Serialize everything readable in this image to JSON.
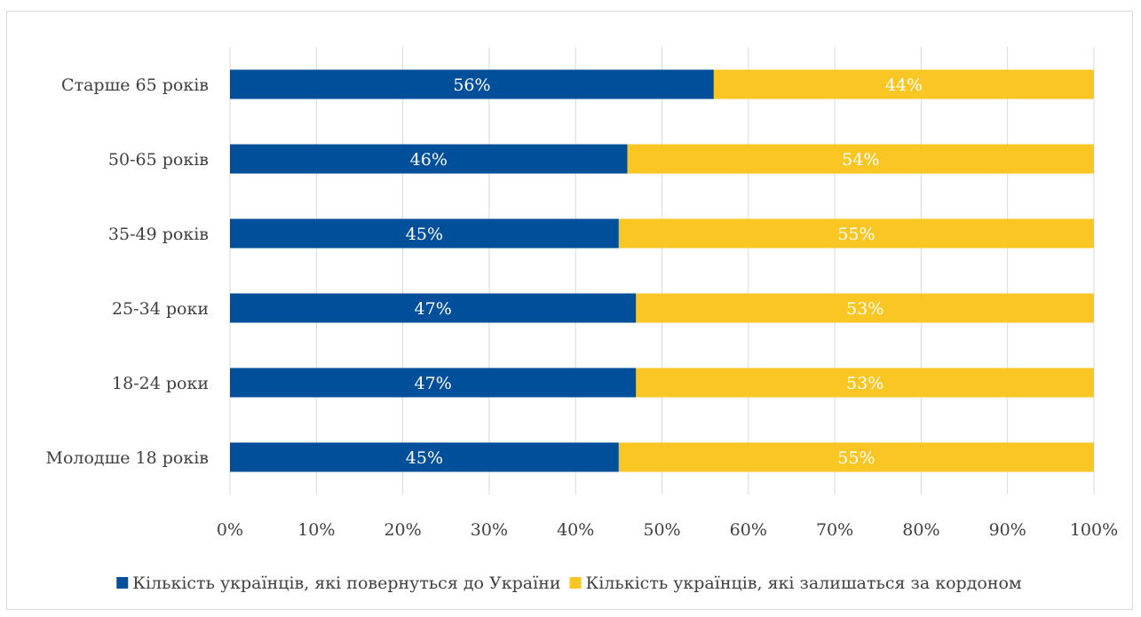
{
  "chart_data": {
    "type": "bar",
    "orientation": "horizontal",
    "stacked": "percent",
    "categories": [
      "Старше 65 років",
      "50-65 років",
      "35-49 років",
      "25-34 роки",
      "18-24 роки",
      "Молодше 18 років"
    ],
    "series": [
      {
        "name": "Кількість українців, які повернуться до України",
        "color": "#004f9a",
        "values": [
          56,
          46,
          45,
          47,
          47,
          45
        ],
        "labels": [
          "56%",
          "46%",
          "45%",
          "47%",
          "47%",
          "45%"
        ]
      },
      {
        "name": "Кількість українців, які залишаться за кордоном",
        "color": "#f9c623",
        "values": [
          44,
          54,
          55,
          53,
          53,
          55
        ],
        "labels": [
          "44%",
          "54%",
          "55%",
          "53%",
          "53%",
          "55%"
        ]
      }
    ],
    "xlim": [
      0,
      100
    ],
    "xticks": [
      "0%",
      "10%",
      "20%",
      "30%",
      "40%",
      "50%",
      "60%",
      "70%",
      "80%",
      "90%",
      "100%"
    ],
    "grid": "vertical",
    "legend": "bottom"
  }
}
